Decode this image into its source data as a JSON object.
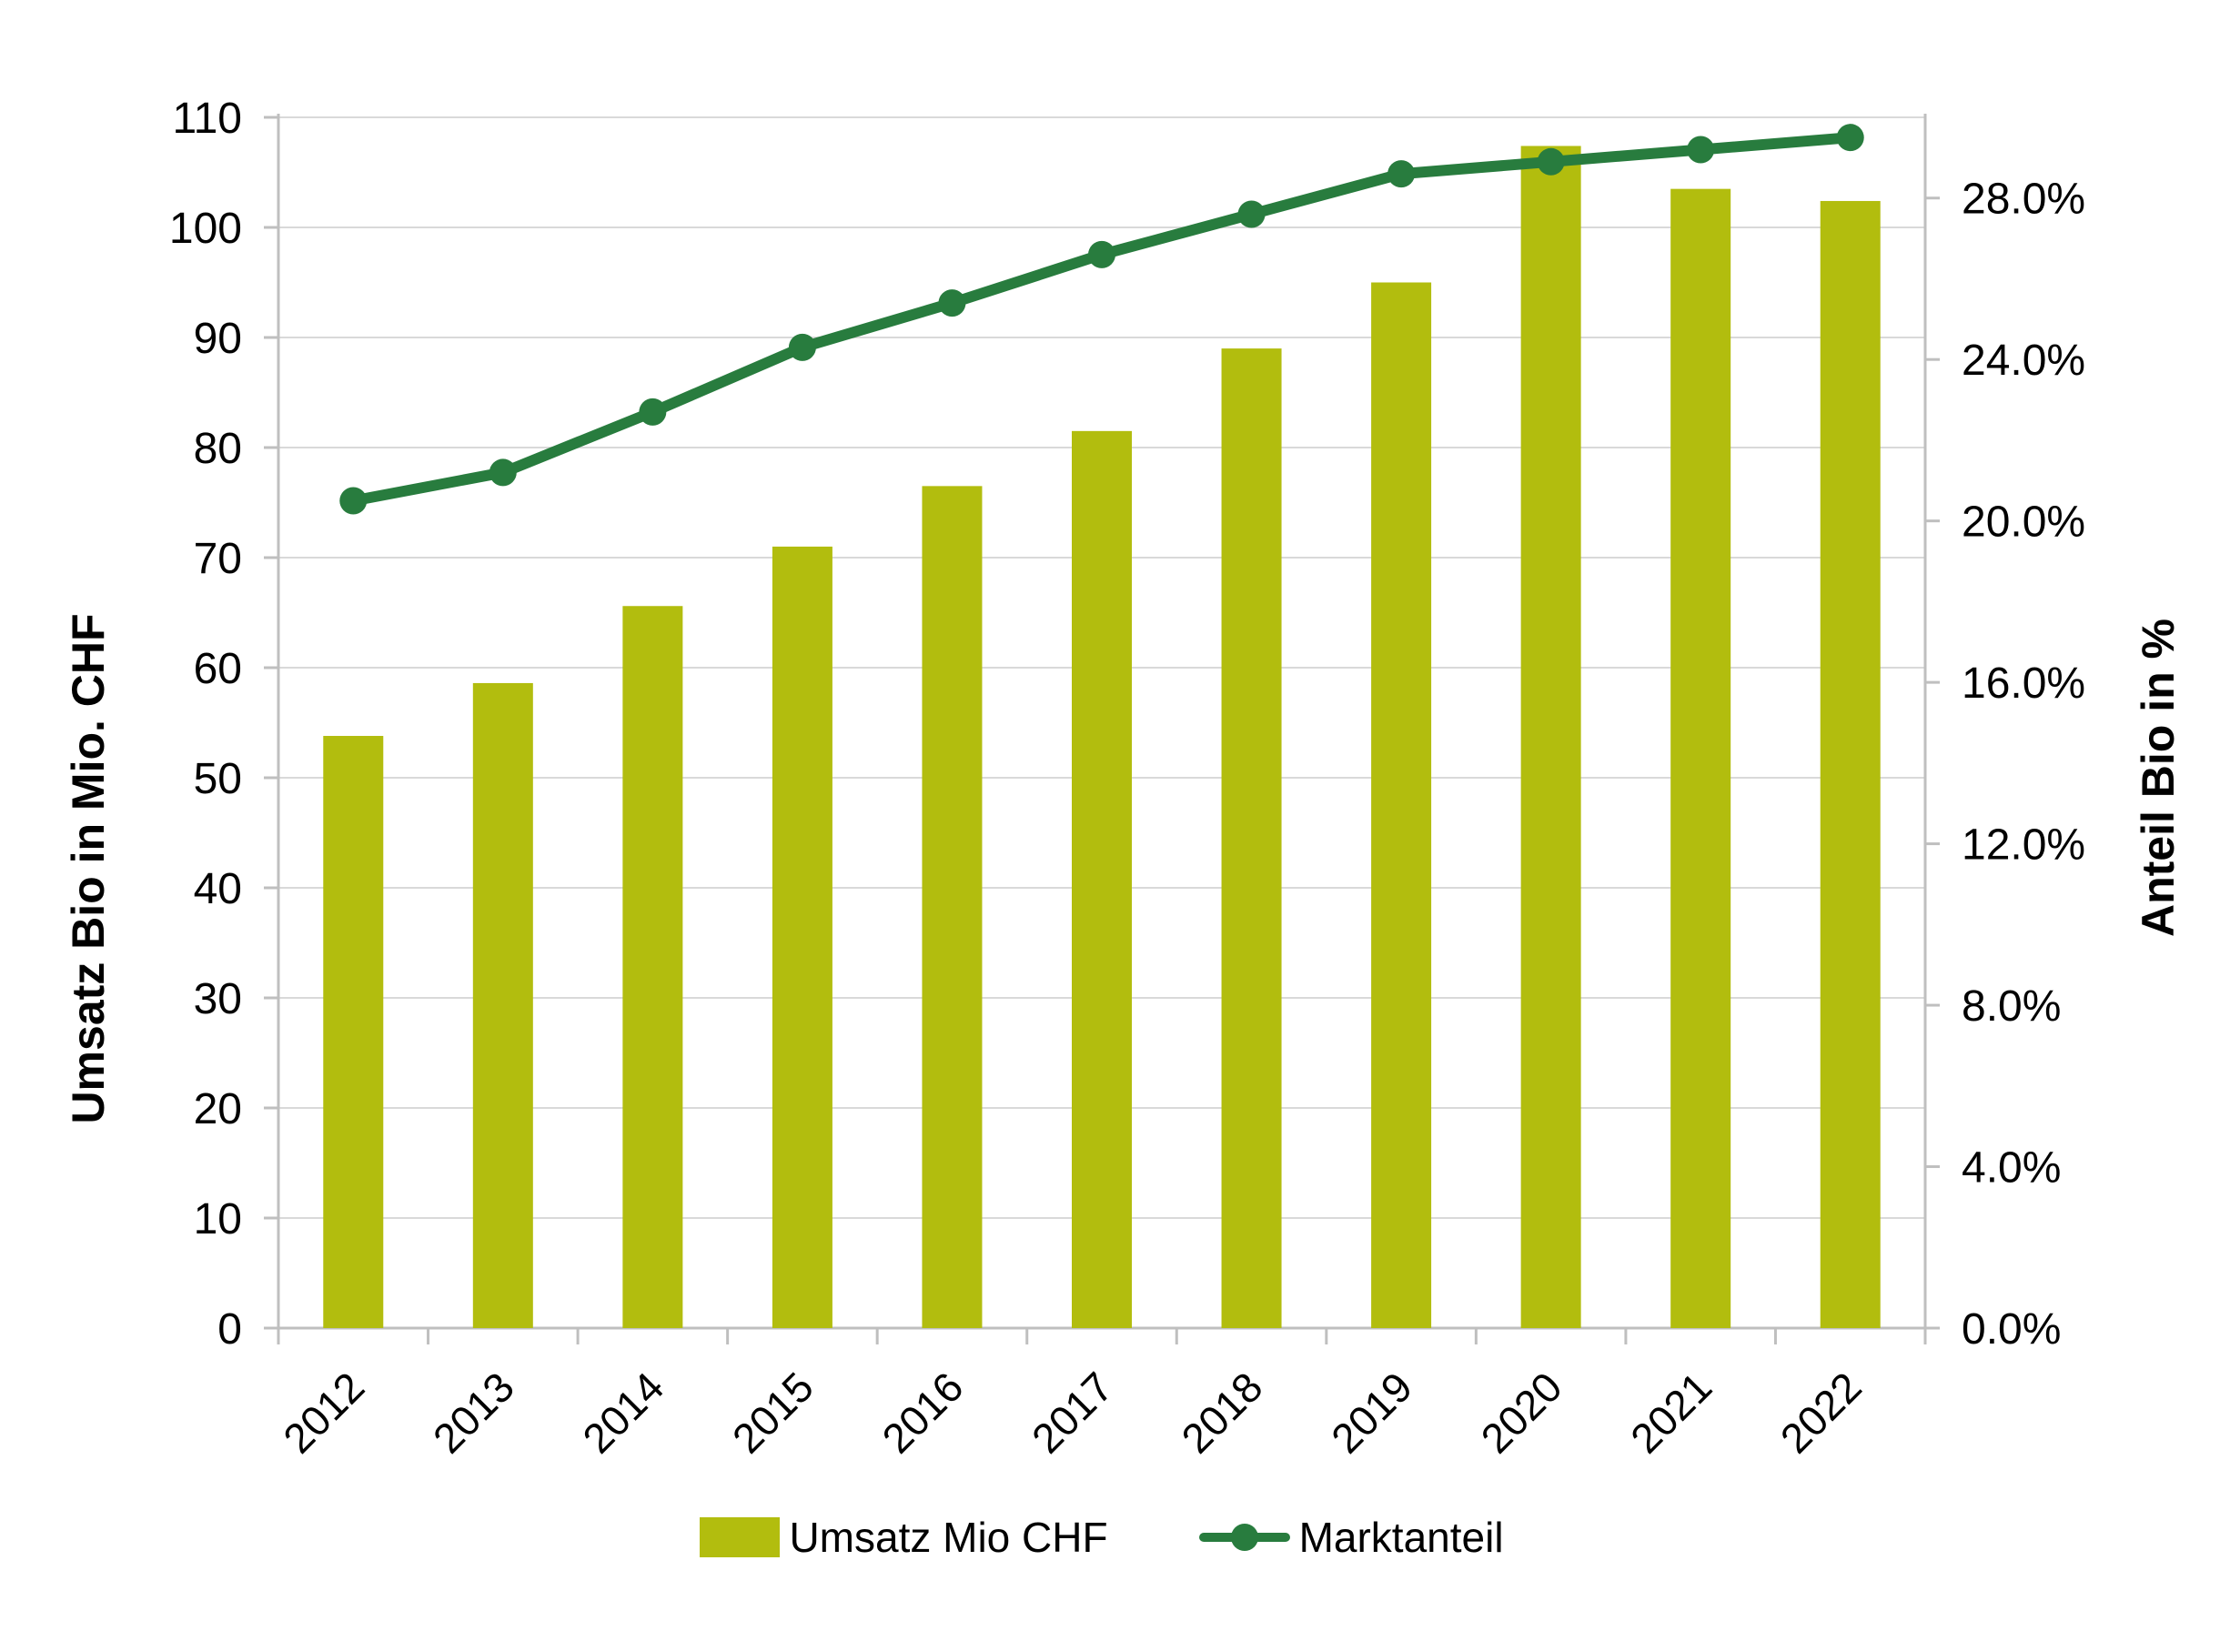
{
  "chart_data": {
    "type": "combo-bar-line",
    "categories": [
      "2012",
      "2013",
      "2014",
      "2015",
      "2016",
      "2017",
      "2018",
      "2019",
      "2020",
      "2021",
      "2022"
    ],
    "series": [
      {
        "name": "Umsatz Mio CHF",
        "type": "bar",
        "axis": "left",
        "values": [
          53.8,
          58.6,
          65.6,
          71.0,
          76.5,
          81.5,
          89.0,
          95.0,
          107.4,
          103.5,
          102.4
        ],
        "color": "#b2bd0e"
      },
      {
        "name": "Marktanteil",
        "type": "line",
        "axis": "right",
        "values": [
          20.5,
          21.2,
          22.7,
          24.3,
          25.4,
          26.6,
          27.6,
          28.6,
          28.9,
          29.2,
          29.5
        ],
        "unit": "%",
        "color": "#287c3e"
      }
    ],
    "left_axis": {
      "title": "Umsatz Bio in Mio. CHF",
      "min": 0,
      "max": 110,
      "tick_labels": [
        "0",
        "10",
        "20",
        "30",
        "40",
        "50",
        "60",
        "70",
        "80",
        "90",
        "100",
        "110"
      ]
    },
    "right_axis": {
      "title": "Anteil Bio in %",
      "min": 0,
      "max": 30,
      "tick_labels": [
        "0.0%",
        "4.0%",
        "8.0%",
        "12.0%",
        "16.0%",
        "20.0%",
        "24.0%",
        "28.0%"
      ]
    },
    "legend_position": "bottom",
    "grid": true
  },
  "colors": {
    "bar": "#b2bd0e",
    "line": "#287c3e",
    "grid": "#d9d9d9",
    "axis": "#bfbfbf",
    "text": "#000000",
    "background": "#ffffff"
  }
}
